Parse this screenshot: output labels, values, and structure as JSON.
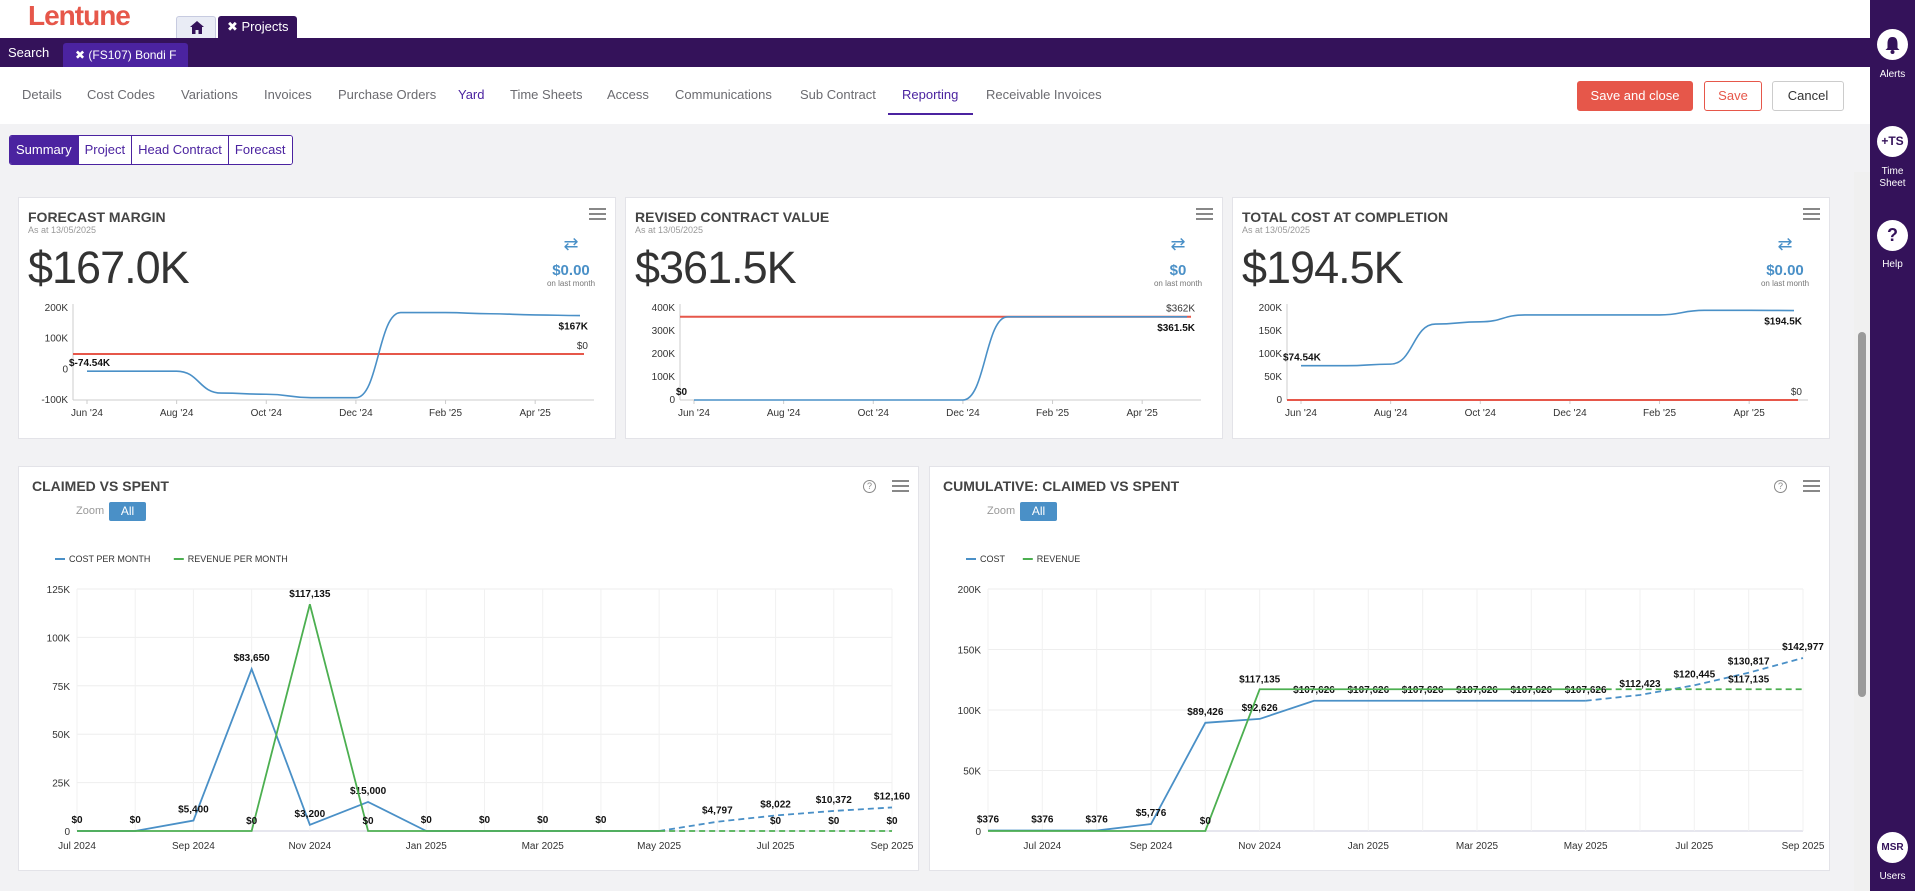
{
  "app": {
    "logo": "Lentune"
  },
  "tabs": {
    "projects_label": "Projects"
  },
  "topbar": {
    "search_label": "Search",
    "project_tab": "(FS107) Bondi F"
  },
  "nav": {
    "items": [
      "Details",
      "Cost Codes",
      "Variations",
      "Invoices",
      "Purchase Orders",
      "Yard",
      "Time Sheets",
      "Access",
      "Communications",
      "Sub Contract",
      "Reporting",
      "Receivable Invoices"
    ],
    "active": "Reporting"
  },
  "actions": {
    "save_close": "Save and close",
    "save": "Save",
    "cancel": "Cancel"
  },
  "subtabs": [
    "Summary",
    "Project",
    "Head Contract",
    "Forecast"
  ],
  "kpis": [
    {
      "title": "FORECAST MARGIN",
      "as_at": "As at 13/05/2025",
      "value": "$167.0K",
      "delta": "$0.00",
      "delta_sub": "on last month"
    },
    {
      "title": "REVISED CONTRACT VALUE",
      "as_at": "As at 13/05/2025",
      "value": "$361.5K",
      "delta": "$0",
      "delta_sub": "on last month"
    },
    {
      "title": "TOTAL COST AT COMPLETION",
      "as_at": "As at 13/05/2025",
      "value": "$194.5K",
      "delta": "$0.00",
      "delta_sub": "on last month"
    }
  ],
  "zoom": {
    "label": "Zoom",
    "all": "All"
  },
  "right_rail": [
    {
      "label": "Alerts",
      "icon": "bell-icon"
    },
    {
      "label": "Time Sheet",
      "circle": "+TS"
    },
    {
      "label": "Help",
      "circle": "?"
    },
    {
      "label": "Users",
      "circle": "MSR"
    }
  ],
  "colors": {
    "purple": "#34125a",
    "accent": "#4b23a0",
    "red": "#e6574a",
    "blue": "#4a90c7",
    "green": "#4caf50"
  },
  "chart_data": [
    {
      "type": "line",
      "title": "FORECAST MARGIN",
      "x": [
        "Jun '24",
        "Jul '24",
        "Aug '24",
        "Sep '24",
        "Oct '24",
        "Nov '24",
        "Dec '24",
        "Jan '25",
        "Feb '25",
        "Mar '25",
        "Apr '25",
        "May '25"
      ],
      "x_ticks": [
        "Jun '24",
        "Aug '24",
        "Oct '24",
        "Dec '24",
        "Feb '25",
        "Apr '25"
      ],
      "y_ticks": [
        "200K",
        "100K",
        "0",
        "-100K"
      ],
      "ylim": [
        -200000,
        200000
      ],
      "series": [
        {
          "name": "Forecast margin",
          "values": [
            -74540,
            -74540,
            -74540,
            -170000,
            -175000,
            -190000,
            -190000,
            180000,
            180000,
            175000,
            170000,
            167000
          ]
        },
        {
          "name": "Zero",
          "values": [
            0,
            0,
            0,
            0,
            0,
            0,
            0,
            0,
            0,
            0,
            0,
            0
          ]
        }
      ],
      "labels": {
        "start": "$-74.54K",
        "end": "$167K",
        "zero": "$0"
      }
    },
    {
      "type": "line",
      "title": "REVISED CONTRACT VALUE",
      "x": [
        "Jun '24",
        "Jul '24",
        "Aug '24",
        "Sep '24",
        "Oct '24",
        "Nov '24",
        "Dec '24",
        "Jan '25",
        "Feb '25",
        "Mar '25",
        "Apr '25",
        "May '25"
      ],
      "x_ticks": [
        "Jun '24",
        "Aug '24",
        "Oct '24",
        "Dec '24",
        "Feb '25",
        "Apr '25"
      ],
      "y_ticks": [
        "400K",
        "300K",
        "200K",
        "100K",
        "0"
      ],
      "ylim": [
        0,
        400000
      ],
      "series": [
        {
          "name": "Revised contract value",
          "values": [
            0,
            0,
            0,
            0,
            0,
            0,
            0,
            361500,
            361500,
            361500,
            361500,
            361500
          ]
        },
        {
          "name": "Contract value",
          "values": [
            362000,
            362000,
            362000,
            362000,
            362000,
            362000,
            362000,
            362000,
            362000,
            362000,
            362000,
            362000
          ]
        }
      ],
      "labels": {
        "start": "$0",
        "top": "$362K",
        "end": "$361.5K"
      }
    },
    {
      "type": "line",
      "title": "TOTAL COST AT COMPLETION",
      "x": [
        "Jun '24",
        "Jul '24",
        "Aug '24",
        "Sep '24",
        "Oct '24",
        "Nov '24",
        "Dec '24",
        "Jan '25",
        "Feb '25",
        "Mar '25",
        "Apr '25",
        "May '25"
      ],
      "x_ticks": [
        "Jun '24",
        "Aug '24",
        "Oct '24",
        "Dec '24",
        "Feb '25",
        "Apr '25"
      ],
      "y_ticks": [
        "200K",
        "150K",
        "100K",
        "50K",
        "0"
      ],
      "ylim": [
        0,
        200000
      ],
      "series": [
        {
          "name": "Total cost",
          "values": [
            74540,
            74540,
            78000,
            165000,
            170000,
            185000,
            185000,
            185000,
            185000,
            195000,
            195000,
            194500
          ]
        },
        {
          "name": "Zero",
          "values": [
            0,
            0,
            0,
            0,
            0,
            0,
            0,
            0,
            0,
            0,
            0,
            0
          ]
        }
      ],
      "labels": {
        "start": "$74.54K",
        "end": "$194.5K",
        "zero": "$0"
      }
    },
    {
      "type": "line",
      "title": "CLAIMED VS SPENT",
      "x": [
        "Jul 2024",
        "Aug 2024",
        "Sep 2024",
        "Oct 2024",
        "Nov 2024",
        "Dec 2024",
        "Jan 2025",
        "Feb 2025",
        "Mar 2025",
        "Apr 2025",
        "May 2025",
        "Jun 2025",
        "Jul 2025",
        "Aug 2025",
        "Sep 2025"
      ],
      "x_ticks": [
        "Jul 2024",
        "Sep 2024",
        "Nov 2024",
        "Jan 2025",
        "Mar 2025",
        "May 2025",
        "Jul 2025",
        "Sep 2025"
      ],
      "y_ticks": [
        "125K",
        "100K",
        "75K",
        "50K",
        "25K",
        "0"
      ],
      "ylim": [
        0,
        125000
      ],
      "legend": [
        "COST PER MONTH",
        "REVENUE PER MONTH"
      ],
      "series": [
        {
          "name": "COST PER MONTH",
          "values": [
            0,
            0,
            5400,
            83650,
            3200,
            15000,
            0,
            0,
            0,
            0,
            0,
            4797,
            8022,
            10372,
            12160
          ],
          "labels": [
            "$0",
            "$0",
            "$5,400",
            "$83,650",
            "$3,200",
            "$15,000",
            "$0",
            "$0",
            "$0",
            "$0",
            "",
            "$4,797",
            "$8,022",
            "$10,372",
            "$12,160"
          ],
          "forecast_from": 10
        },
        {
          "name": "REVENUE PER MONTH",
          "values": [
            0,
            0,
            0,
            0,
            117135,
            0,
            0,
            0,
            0,
            0,
            0,
            0,
            0,
            0,
            0
          ],
          "labels": [
            "",
            "",
            "",
            "$0",
            "$117,135",
            "$0",
            "",
            "",
            "",
            "",
            "",
            "",
            "$0",
            "$0",
            "$0"
          ],
          "forecast_from": 10
        }
      ]
    },
    {
      "type": "line",
      "title": "CUMULATIVE: CLAIMED VS SPENT",
      "x": [
        "Jun 2024",
        "Jul 2024",
        "Aug 2024",
        "Sep 2024",
        "Oct 2024",
        "Nov 2024",
        "Dec 2024",
        "Jan 2025",
        "Feb 2025",
        "Mar 2025",
        "Apr 2025",
        "May 2025",
        "Jun 2025",
        "Jul 2025",
        "Aug 2025",
        "Sep 2025"
      ],
      "x_ticks": [
        "Jul 2024",
        "Sep 2024",
        "Nov 2024",
        "Jan 2025",
        "Mar 2025",
        "May 2025",
        "Jul 2025",
        "Sep 2025"
      ],
      "y_ticks": [
        "200K",
        "150K",
        "100K",
        "50K",
        "0"
      ],
      "ylim": [
        0,
        200000
      ],
      "legend": [
        "COST",
        "REVENUE"
      ],
      "series": [
        {
          "name": "COST",
          "values": [
            376,
            376,
            376,
            5776,
            89426,
            92626,
            107626,
            107626,
            107626,
            107626,
            107626,
            107626,
            112423,
            120445,
            130817,
            142977
          ],
          "labels": [
            "$376",
            "$376",
            "$376",
            "$5,776",
            "$89,426",
            "$92,626",
            "$107,626",
            "$107,626",
            "$107,626",
            "$107,626",
            "$107,626",
            "$107,626",
            "$112,423",
            "$120,445",
            "$130,817",
            "$142,977"
          ],
          "forecast_from": 11
        },
        {
          "name": "REVENUE",
          "values": [
            0,
            0,
            0,
            0,
            0,
            117135,
            117135,
            117135,
            117135,
            117135,
            117135,
            117135,
            117135,
            117135,
            117135,
            117135
          ],
          "labels": [
            "",
            "",
            "",
            "",
            "$0",
            "$117,135",
            "",
            "",
            "",
            "",
            "",
            "",
            "",
            "",
            "$117,135",
            ""
          ],
          "forecast_from": 11
        }
      ]
    }
  ]
}
